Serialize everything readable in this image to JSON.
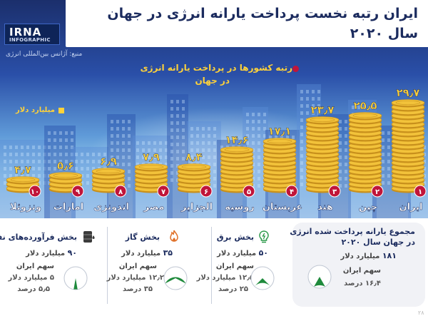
{
  "header": {
    "logo_main": "IRNA",
    "logo_sub": "INFOGRAPHIC",
    "title_line1": "ایران رتبه نخست پرداخت یارانه انرژی در جهان",
    "title_line2": "سال ۲۰۲۰",
    "source": "منبع: آژانس بین‌المللی انرژی"
  },
  "chart_data": {
    "type": "bar",
    "title": "رتبه کشورها در پرداخت یارانه انرژی در جهان",
    "unit_label": "میلیارد دلار",
    "categories": [
      "ایران",
      "چین",
      "هند",
      "عربستان",
      "روسیه",
      "الجزایر",
      "مصر",
      "اندونزی",
      "امارات",
      "ونزوئلا"
    ],
    "ranks": [
      "۱",
      "۲",
      "۳",
      "۴",
      "۵",
      "۶",
      "۷",
      "۸",
      "۹",
      "۱۰"
    ],
    "values": [
      29.7,
      25.5,
      23.7,
      17.1,
      14.6,
      8.4,
      7.9,
      6.9,
      5.6,
      4.7
    ],
    "value_labels": [
      "۲۹٫۷",
      "۲۵٫۵",
      "۲۳٫۷",
      "۱۷٫۱",
      "۱۴٫۶",
      "۸٫۴",
      "۷٫۹",
      "۶٫۹",
      "۵٫۶",
      "۴٫۷"
    ],
    "ylim": [
      0,
      30
    ],
    "colors": {
      "coin": "#f2c23a",
      "coin_edge": "#c8901c",
      "rank_badge": "#c0153a",
      "value_text": "#ffd23a",
      "label_text": "#ffffff"
    }
  },
  "summary": {
    "total": {
      "title_line1": "مجموع یارانه پرداخت شده انرژی",
      "title_line2": "در جهان سال ۲۰۲۰",
      "value_num": "۱۸۱",
      "value_unit": "میلیارد دلار",
      "share_label": "سهم ایران",
      "share_text": "۱۶٫۴ درصد",
      "share_percent": 16.4
    },
    "sectors": [
      {
        "title": "بخش برق",
        "icon": "lightbulb-icon",
        "value_num": "۵۰",
        "value_unit": "میلیارد دلار",
        "share_label": "سهم ایران",
        "share_amount": "۱۲٫۵ میلیارد دلار",
        "share_pct_text": "۲۵ درصد",
        "share_percent": 25
      },
      {
        "title": "بخش گاز",
        "icon": "flame-icon",
        "value_num": "۳۵",
        "value_unit": "میلیارد دلار",
        "share_label": "سهم ایران",
        "share_amount": "۱۲٫۲ میلیارد دلار",
        "share_pct_text": "۳۵ درصد",
        "share_percent": 35
      },
      {
        "title": "بخش فرآورده‌های نفتی",
        "icon": "oil-barrel-icon",
        "value_num": "۹۰",
        "value_unit": "میلیارد دلار",
        "share_label": "سهم ایران",
        "share_amount": "۵ میلیارد دلار",
        "share_pct_text": "۵٫۵ درصد",
        "share_percent": 5.5
      }
    ],
    "colors": {
      "pie_fill": "#1f8a3c",
      "pie_bg": "#ffffff",
      "pie_edge": "#bfc6d2"
    }
  },
  "footer": {
    "page_mark": "۲۸"
  }
}
